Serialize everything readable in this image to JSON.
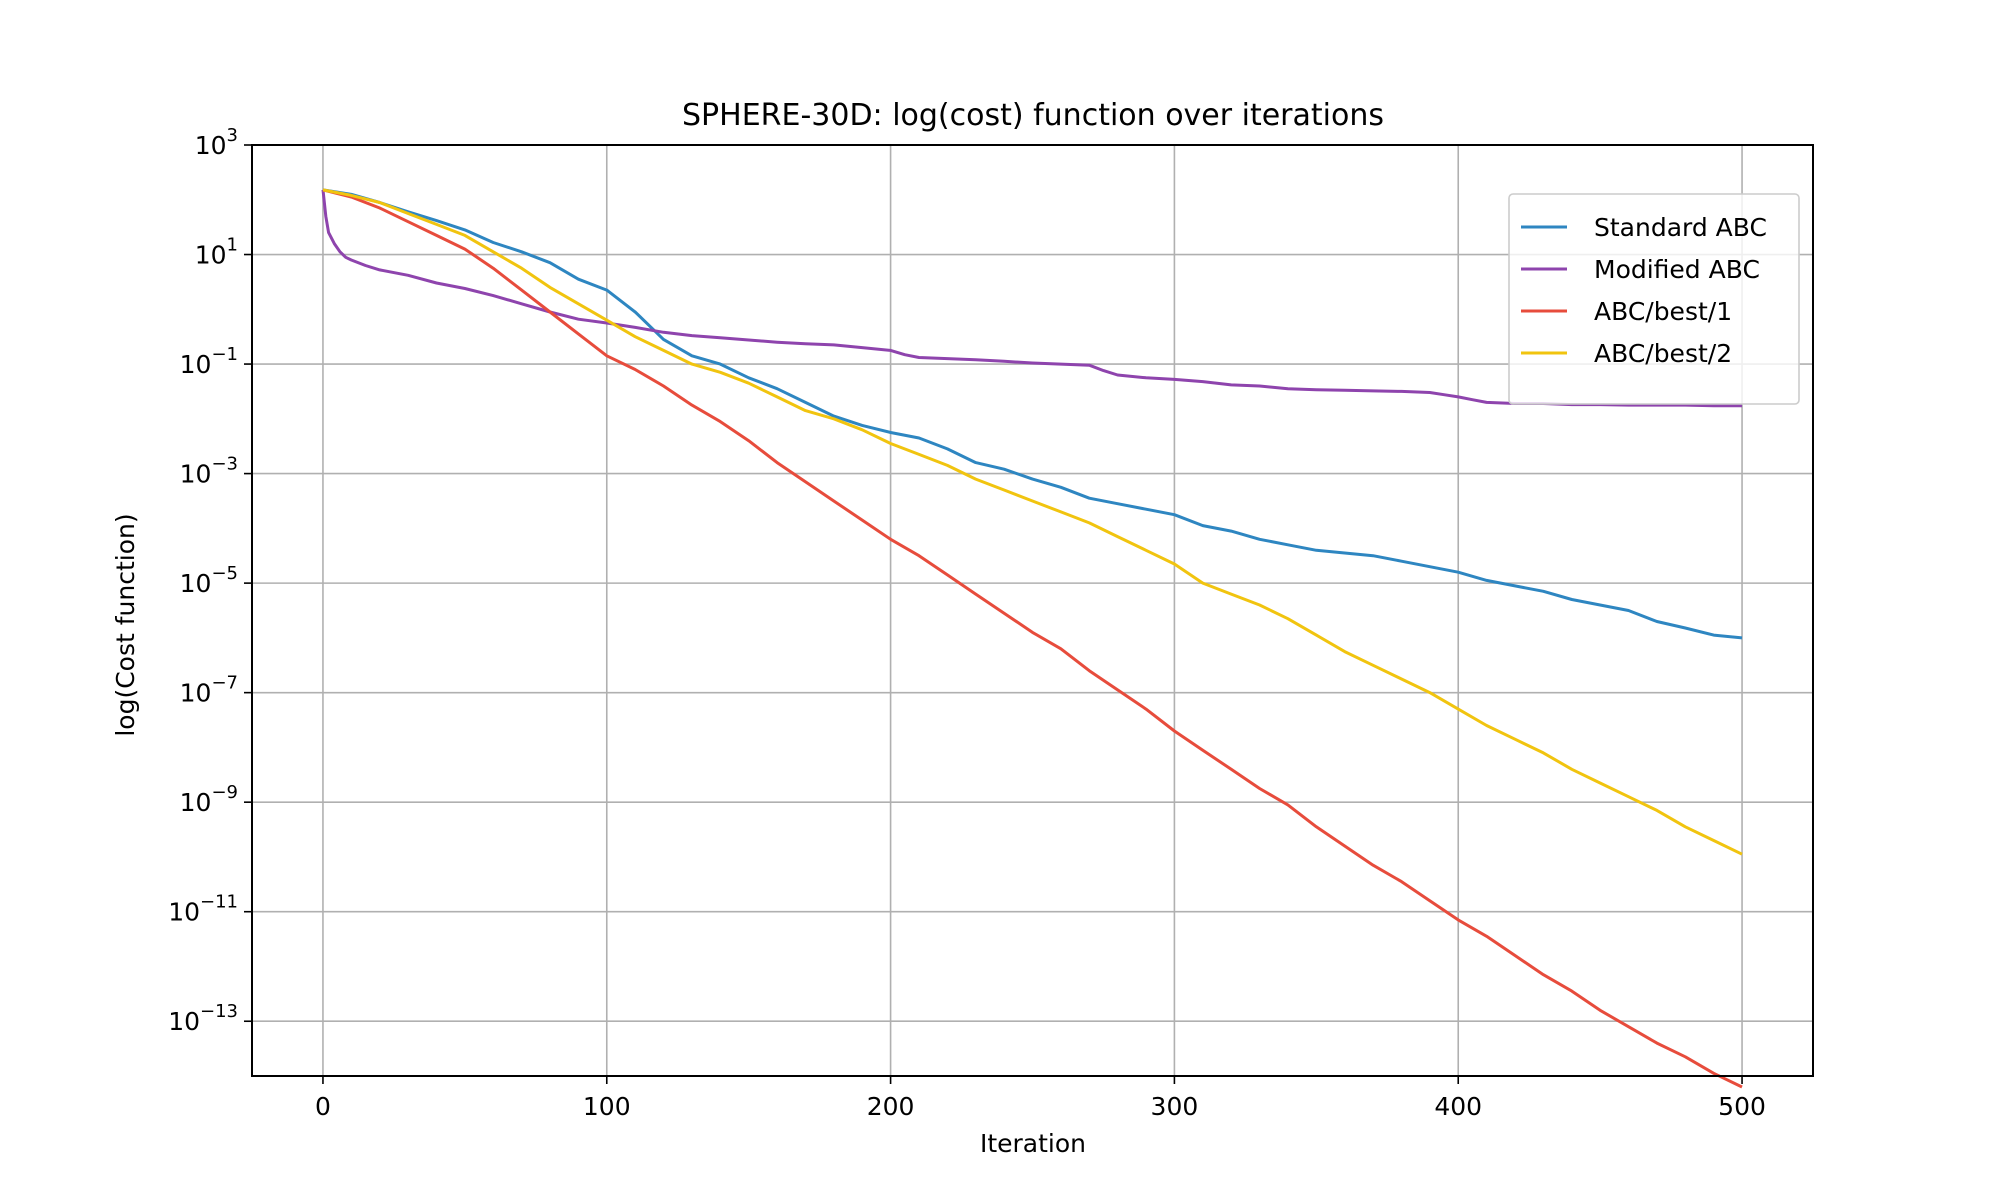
{
  "chart_data": {
    "type": "line",
    "title": "SPHERE-30D: log(cost) function over iterations",
    "xlabel": "Iteration",
    "ylabel": "log(Cost function)",
    "xlim": [
      -25,
      525
    ],
    "ylim_exp": [
      -14,
      3
    ],
    "y_scale": "log",
    "grid": true,
    "legend_position": "top-right",
    "x_ticks": [
      0,
      100,
      200,
      300,
      400,
      500
    ],
    "x_tick_labels": [
      "0",
      "100",
      "200",
      "300",
      "400",
      "500"
    ],
    "y_ticks_exp": [
      3,
      1,
      -1,
      -3,
      -5,
      -7,
      -9,
      -11,
      -13
    ],
    "y_tick_labels": [
      {
        "base": "10",
        "exp": "3"
      },
      {
        "base": "10",
        "exp": "1"
      },
      {
        "base": "10",
        "exp": "−1"
      },
      {
        "base": "10",
        "exp": "−3"
      },
      {
        "base": "10",
        "exp": "−5"
      },
      {
        "base": "10",
        "exp": "−7"
      },
      {
        "base": "10",
        "exp": "−9"
      },
      {
        "base": "10",
        "exp": "−11"
      },
      {
        "base": "10",
        "exp": "−13"
      }
    ],
    "series": [
      {
        "name": "Standard ABC",
        "color": "#2e86c1",
        "points": [
          [
            0,
            2.18
          ],
          [
            10,
            2.1
          ],
          [
            20,
            1.95
          ],
          [
            30,
            1.78
          ],
          [
            40,
            1.62
          ],
          [
            50,
            1.45
          ],
          [
            60,
            1.22
          ],
          [
            70,
            1.05
          ],
          [
            80,
            0.85
          ],
          [
            90,
            0.55
          ],
          [
            100,
            0.35
          ],
          [
            110,
            -0.05
          ],
          [
            120,
            -0.55
          ],
          [
            130,
            -0.85
          ],
          [
            140,
            -1.0
          ],
          [
            150,
            -1.25
          ],
          [
            160,
            -1.45
          ],
          [
            170,
            -1.7
          ],
          [
            180,
            -1.95
          ],
          [
            190,
            -2.12
          ],
          [
            200,
            -2.25
          ],
          [
            210,
            -2.35
          ],
          [
            220,
            -2.55
          ],
          [
            230,
            -2.8
          ],
          [
            240,
            -2.92
          ],
          [
            250,
            -3.1
          ],
          [
            260,
            -3.25
          ],
          [
            270,
            -3.45
          ],
          [
            280,
            -3.55
          ],
          [
            290,
            -3.65
          ],
          [
            300,
            -3.75
          ],
          [
            310,
            -3.95
          ],
          [
            320,
            -4.05
          ],
          [
            330,
            -4.2
          ],
          [
            340,
            -4.3
          ],
          [
            350,
            -4.4
          ],
          [
            360,
            -4.45
          ],
          [
            370,
            -4.5
          ],
          [
            380,
            -4.6
          ],
          [
            390,
            -4.7
          ],
          [
            400,
            -4.8
          ],
          [
            410,
            -4.95
          ],
          [
            420,
            -5.05
          ],
          [
            430,
            -5.15
          ],
          [
            440,
            -5.3
          ],
          [
            450,
            -5.4
          ],
          [
            460,
            -5.5
          ],
          [
            470,
            -5.7
          ],
          [
            480,
            -5.82
          ],
          [
            490,
            -5.95
          ],
          [
            500,
            -6.0
          ]
        ]
      },
      {
        "name": "Modified ABC",
        "color": "#8e44ad",
        "points": [
          [
            0,
            2.18
          ],
          [
            1,
            1.7
          ],
          [
            2,
            1.4
          ],
          [
            4,
            1.2
          ],
          [
            6,
            1.05
          ],
          [
            8,
            0.95
          ],
          [
            10,
            0.9
          ],
          [
            15,
            0.8
          ],
          [
            20,
            0.72
          ],
          [
            30,
            0.62
          ],
          [
            40,
            0.48
          ],
          [
            50,
            0.38
          ],
          [
            60,
            0.25
          ],
          [
            70,
            0.1
          ],
          [
            80,
            -0.05
          ],
          [
            90,
            -0.18
          ],
          [
            100,
            -0.25
          ],
          [
            110,
            -0.33
          ],
          [
            120,
            -0.42
          ],
          [
            130,
            -0.48
          ],
          [
            140,
            -0.52
          ],
          [
            150,
            -0.56
          ],
          [
            160,
            -0.6
          ],
          [
            170,
            -0.63
          ],
          [
            180,
            -0.65
          ],
          [
            190,
            -0.7
          ],
          [
            200,
            -0.75
          ],
          [
            205,
            -0.83
          ],
          [
            210,
            -0.88
          ],
          [
            220,
            -0.9
          ],
          [
            230,
            -0.92
          ],
          [
            240,
            -0.95
          ],
          [
            250,
            -0.98
          ],
          [
            260,
            -1.0
          ],
          [
            270,
            -1.02
          ],
          [
            275,
            -1.12
          ],
          [
            280,
            -1.2
          ],
          [
            290,
            -1.25
          ],
          [
            300,
            -1.28
          ],
          [
            310,
            -1.32
          ],
          [
            320,
            -1.38
          ],
          [
            330,
            -1.4
          ],
          [
            340,
            -1.45
          ],
          [
            350,
            -1.47
          ],
          [
            360,
            -1.48
          ],
          [
            370,
            -1.49
          ],
          [
            380,
            -1.5
          ],
          [
            390,
            -1.52
          ],
          [
            395,
            -1.56
          ],
          [
            400,
            -1.6
          ],
          [
            405,
            -1.65
          ],
          [
            410,
            -1.7
          ],
          [
            420,
            -1.72
          ],
          [
            430,
            -1.72
          ],
          [
            440,
            -1.74
          ],
          [
            450,
            -1.74
          ],
          [
            460,
            -1.75
          ],
          [
            470,
            -1.75
          ],
          [
            480,
            -1.75
          ],
          [
            490,
            -1.76
          ],
          [
            500,
            -1.76
          ]
        ]
      },
      {
        "name": "ABC/best/1",
        "color": "#e74c3c",
        "points": [
          [
            0,
            2.18
          ],
          [
            10,
            2.05
          ],
          [
            20,
            1.85
          ],
          [
            30,
            1.6
          ],
          [
            40,
            1.35
          ],
          [
            50,
            1.1
          ],
          [
            60,
            0.75
          ],
          [
            70,
            0.35
          ],
          [
            80,
            -0.05
          ],
          [
            90,
            -0.45
          ],
          [
            100,
            -0.85
          ],
          [
            110,
            -1.1
          ],
          [
            120,
            -1.4
          ],
          [
            130,
            -1.75
          ],
          [
            140,
            -2.05
          ],
          [
            150,
            -2.4
          ],
          [
            160,
            -2.8
          ],
          [
            170,
            -3.15
          ],
          [
            180,
            -3.5
          ],
          [
            190,
            -3.85
          ],
          [
            200,
            -4.2
          ],
          [
            210,
            -4.5
          ],
          [
            220,
            -4.85
          ],
          [
            230,
            -5.2
          ],
          [
            240,
            -5.55
          ],
          [
            250,
            -5.9
          ],
          [
            260,
            -6.2
          ],
          [
            270,
            -6.6
          ],
          [
            280,
            -6.95
          ],
          [
            290,
            -7.3
          ],
          [
            300,
            -7.7
          ],
          [
            310,
            -8.05
          ],
          [
            320,
            -8.4
          ],
          [
            330,
            -8.75
          ],
          [
            340,
            -9.05
          ],
          [
            350,
            -9.45
          ],
          [
            360,
            -9.8
          ],
          [
            370,
            -10.15
          ],
          [
            380,
            -10.45
          ],
          [
            390,
            -10.8
          ],
          [
            400,
            -11.15
          ],
          [
            410,
            -11.45
          ],
          [
            420,
            -11.8
          ],
          [
            430,
            -12.15
          ],
          [
            440,
            -12.45
          ],
          [
            450,
            -12.8
          ],
          [
            460,
            -13.1
          ],
          [
            470,
            -13.4
          ],
          [
            480,
            -13.65
          ],
          [
            490,
            -13.95
          ],
          [
            500,
            -14.2
          ]
        ]
      },
      {
        "name": "ABC/best/2",
        "color": "#f1c40f",
        "points": [
          [
            0,
            2.18
          ],
          [
            10,
            2.08
          ],
          [
            20,
            1.95
          ],
          [
            30,
            1.75
          ],
          [
            40,
            1.55
          ],
          [
            50,
            1.35
          ],
          [
            60,
            1.05
          ],
          [
            70,
            0.75
          ],
          [
            80,
            0.4
          ],
          [
            90,
            0.1
          ],
          [
            100,
            -0.2
          ],
          [
            110,
            -0.5
          ],
          [
            120,
            -0.75
          ],
          [
            130,
            -1.0
          ],
          [
            140,
            -1.15
          ],
          [
            150,
            -1.35
          ],
          [
            160,
            -1.6
          ],
          [
            170,
            -1.85
          ],
          [
            180,
            -2.0
          ],
          [
            190,
            -2.2
          ],
          [
            200,
            -2.45
          ],
          [
            210,
            -2.65
          ],
          [
            220,
            -2.85
          ],
          [
            230,
            -3.1
          ],
          [
            240,
            -3.3
          ],
          [
            250,
            -3.5
          ],
          [
            260,
            -3.7
          ],
          [
            270,
            -3.9
          ],
          [
            280,
            -4.15
          ],
          [
            290,
            -4.4
          ],
          [
            300,
            -4.65
          ],
          [
            310,
            -5.0
          ],
          [
            320,
            -5.2
          ],
          [
            330,
            -5.4
          ],
          [
            340,
            -5.65
          ],
          [
            350,
            -5.95
          ],
          [
            360,
            -6.25
          ],
          [
            370,
            -6.5
          ],
          [
            380,
            -6.75
          ],
          [
            390,
            -7.0
          ],
          [
            400,
            -7.3
          ],
          [
            410,
            -7.6
          ],
          [
            420,
            -7.85
          ],
          [
            430,
            -8.1
          ],
          [
            440,
            -8.4
          ],
          [
            450,
            -8.65
          ],
          [
            460,
            -8.9
          ],
          [
            470,
            -9.15
          ],
          [
            480,
            -9.45
          ],
          [
            490,
            -9.7
          ],
          [
            500,
            -9.95
          ]
        ]
      }
    ]
  }
}
